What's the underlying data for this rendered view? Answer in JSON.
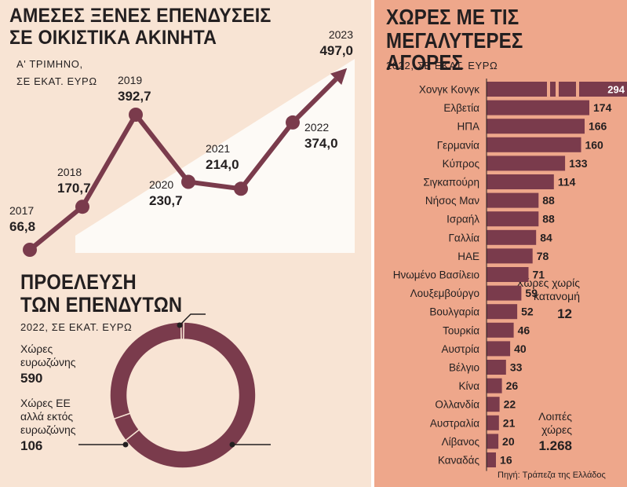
{
  "colors": {
    "accent": "#7a3b4c",
    "left_bg": "#f8e4d4",
    "right_bg": "#eea78b",
    "plot_bg": "#fdfaf6",
    "text": "#231f20"
  },
  "investments": {
    "title_line1": "ΑΜΕΣΕΣ ΞΕΝΕΣ ΕΠΕΝΔΥΣΕΙΣ",
    "title_line2": "ΣΕ ΟΙΚΙΣΤΙΚΑ ΑΚΙΝΗΤΑ",
    "subtitle_line1": "Α' ΤΡΙΜΗΝΟ,",
    "subtitle_line2": "ΣΕ ΕΚΑΤ. ΕΥΡΩ"
  },
  "origin": {
    "title_line1": "ΠΡΟΕΛΕΥΣΗ",
    "title_line2": "ΤΩΝ ΕΠΕΝΔΥΤΩΝ",
    "subtitle": "2022, ΣΕ ΕΚΑΤ. ΕΥΡΩ",
    "labels": [
      {
        "l1": "Χώρες",
        "l2": "ευρωζώνης",
        "l3": "",
        "value": "590"
      },
      {
        "l1": "Χώρες ΕΕ",
        "l2": "αλλά εκτός",
        "l3": "ευρωζώνης",
        "value": "106"
      },
      {
        "l1": "Λοιπές",
        "l2": "χώρες",
        "l3": "",
        "value": "1.268"
      },
      {
        "l1": "Χώρες χωρίς",
        "l2": "κατανομή",
        "l3": "",
        "value": "12"
      }
    ]
  },
  "markets": {
    "title_line1": "ΧΩΡΕΣ ΜΕ ΤΙΣ",
    "title_line2": "ΜΕΓΑΛΥΤΕΡΕΣ ΑΓΟΡΕΣ",
    "subtitle": "2022, ΣΕ ΕΚΑΤ. ΕΥΡΩ",
    "source": "Πηγή: Τράπεζα της Ελλάδος"
  },
  "chart_data": [
    {
      "type": "line",
      "title": "ΑΜΕΣΕΣ ΞΕΝΕΣ ΕΠΕΝΔΥΣΕΙΣ ΣΕ ΟΙΚΙΣΤΙΚΑ ΑΚΙΝΗΤΑ",
      "subtitle": "Α' ΤΡΙΜΗΝΟ, ΣΕ ΕΚΑΤ. ΕΥΡΩ",
      "x": [
        "2017",
        "2018",
        "2019",
        "2020",
        "2021",
        "2022",
        "2023"
      ],
      "values": [
        66.8,
        170.7,
        392.7,
        230.7,
        214.0,
        374.0,
        497.0
      ],
      "labels": [
        "66,8",
        "170,7",
        "392,7",
        "230,7",
        "214,0",
        "374,0",
        "497,0"
      ],
      "grid": false
    },
    {
      "type": "pie",
      "title": "ΠΡΟΕΛΕΥΣΗ ΤΩΝ ΕΠΕΝΔΥΤΩΝ",
      "subtitle": "2022, ΣΕ ΕΚΑΤ. ΕΥΡΩ",
      "categories": [
        "Λοιπές χώρες",
        "Χώρες ΕΕ αλλά εκτός ευρωζώνης",
        "Χώρες ευρωζώνης",
        "Χώρες χωρίς κατανομή"
      ],
      "values": [
        1268,
        106,
        590,
        12
      ]
    },
    {
      "type": "bar",
      "orientation": "horizontal",
      "title": "ΧΩΡΕΣ ΜΕ ΤΙΣ ΜΕΓΑΛΥΤΕΡΕΣ ΑΓΟΡΕΣ",
      "subtitle": "2022, ΣΕ ΕΚΑΤ. ΕΥΡΩ",
      "categories": [
        "Χονγκ Κονγκ",
        "Ελβετία",
        "ΗΠΑ",
        "Γερμανία",
        "Κύπρος",
        "Σιγκαπούρη",
        "Νήσος Μαν",
        "Ισραήλ",
        "Γαλλία",
        "ΗΑΕ",
        "Ηνωμένο Βασίλειο",
        "Λουξεμβούργο",
        "Βουλγαρία",
        "Τουρκία",
        "Αυστρία",
        "Βέλγιο",
        "Κίνα",
        "Ολλανδία",
        "Αυστραλία",
        "Λίβανος",
        "Καναδάς"
      ],
      "values": [
        294,
        174,
        166,
        160,
        133,
        114,
        88,
        88,
        84,
        78,
        71,
        59,
        52,
        46,
        40,
        33,
        26,
        22,
        21,
        20,
        16
      ],
      "broken_axis_category": "Χονγκ Κονγκ",
      "source": "Πηγή: Τράπεζα της Ελλάδος"
    }
  ]
}
